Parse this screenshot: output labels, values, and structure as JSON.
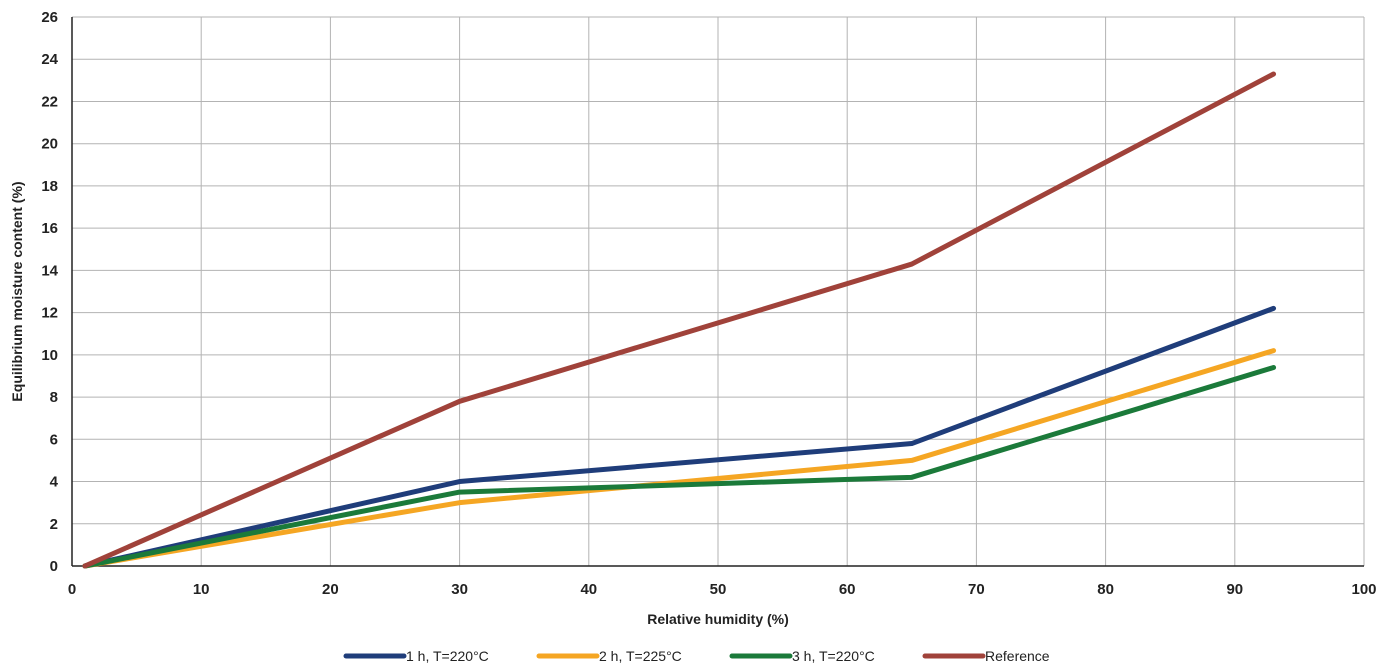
{
  "chart_data": {
    "type": "line",
    "title": "",
    "xlabel": "Relative humidity (%)",
    "ylabel": "Equilibrium moisture content (%)",
    "xlim": [
      0,
      100
    ],
    "ylim": [
      0,
      26
    ],
    "xticks": [
      0,
      10,
      20,
      30,
      40,
      50,
      60,
      70,
      80,
      90,
      100
    ],
    "yticks": [
      0,
      2,
      4,
      6,
      8,
      10,
      12,
      14,
      16,
      18,
      20,
      22,
      24,
      26
    ],
    "grid": true,
    "legend_position": "bottom",
    "series": [
      {
        "name": "1 h, T=220°C",
        "color": "#1f3d7a",
        "x": [
          1,
          30,
          65,
          93
        ],
        "y": [
          0,
          4.0,
          5.8,
          12.2
        ]
      },
      {
        "name": "2 h, T=225°C",
        "color": "#f5a623",
        "x": [
          1,
          30,
          65,
          93
        ],
        "y": [
          0,
          3.0,
          5.0,
          10.2
        ]
      },
      {
        "name": "3 h, T=220°C",
        "color": "#1b7a3a",
        "x": [
          1,
          30,
          65,
          93
        ],
        "y": [
          0,
          3.5,
          4.2,
          9.4
        ]
      },
      {
        "name": "Reference",
        "color": "#a0423a",
        "x": [
          1,
          30,
          65,
          93
        ],
        "y": [
          0,
          7.8,
          14.3,
          23.3
        ]
      }
    ]
  }
}
